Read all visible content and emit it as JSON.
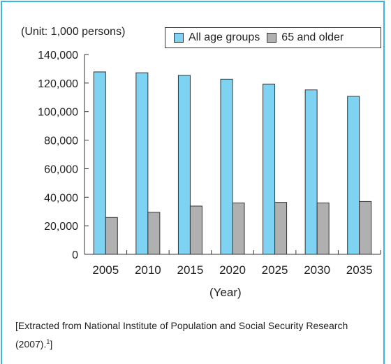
{
  "chart_data": {
    "type": "bar",
    "unit_note": "(Unit: 1,000 persons)",
    "categories": [
      "2005",
      "2010",
      "2015",
      "2020",
      "2025",
      "2030",
      "2035"
    ],
    "series": [
      {
        "name": "All age groups",
        "values": [
          127800,
          127200,
          125400,
          122700,
          119300,
          115200,
          110700
        ],
        "color": "#7fd3f2"
      },
      {
        "name": "65 and older",
        "values": [
          25800,
          29400,
          33800,
          36000,
          36400,
          36000,
          37000
        ],
        "color": "#b0b0b0"
      }
    ],
    "xlabel": "(Year)",
    "ylim": [
      0,
      140000
    ],
    "yticks": [
      "0",
      "20,000",
      "40,000",
      "60,000",
      "80,000",
      "100,000",
      "120,000",
      "140,000"
    ],
    "legend_position": "top-right",
    "grid": false
  },
  "footer": {
    "source_text": "[Extracted from National Institute of Population and Social Security Research (2007).",
    "footnote_mark": "1",
    "source_end": "]"
  }
}
